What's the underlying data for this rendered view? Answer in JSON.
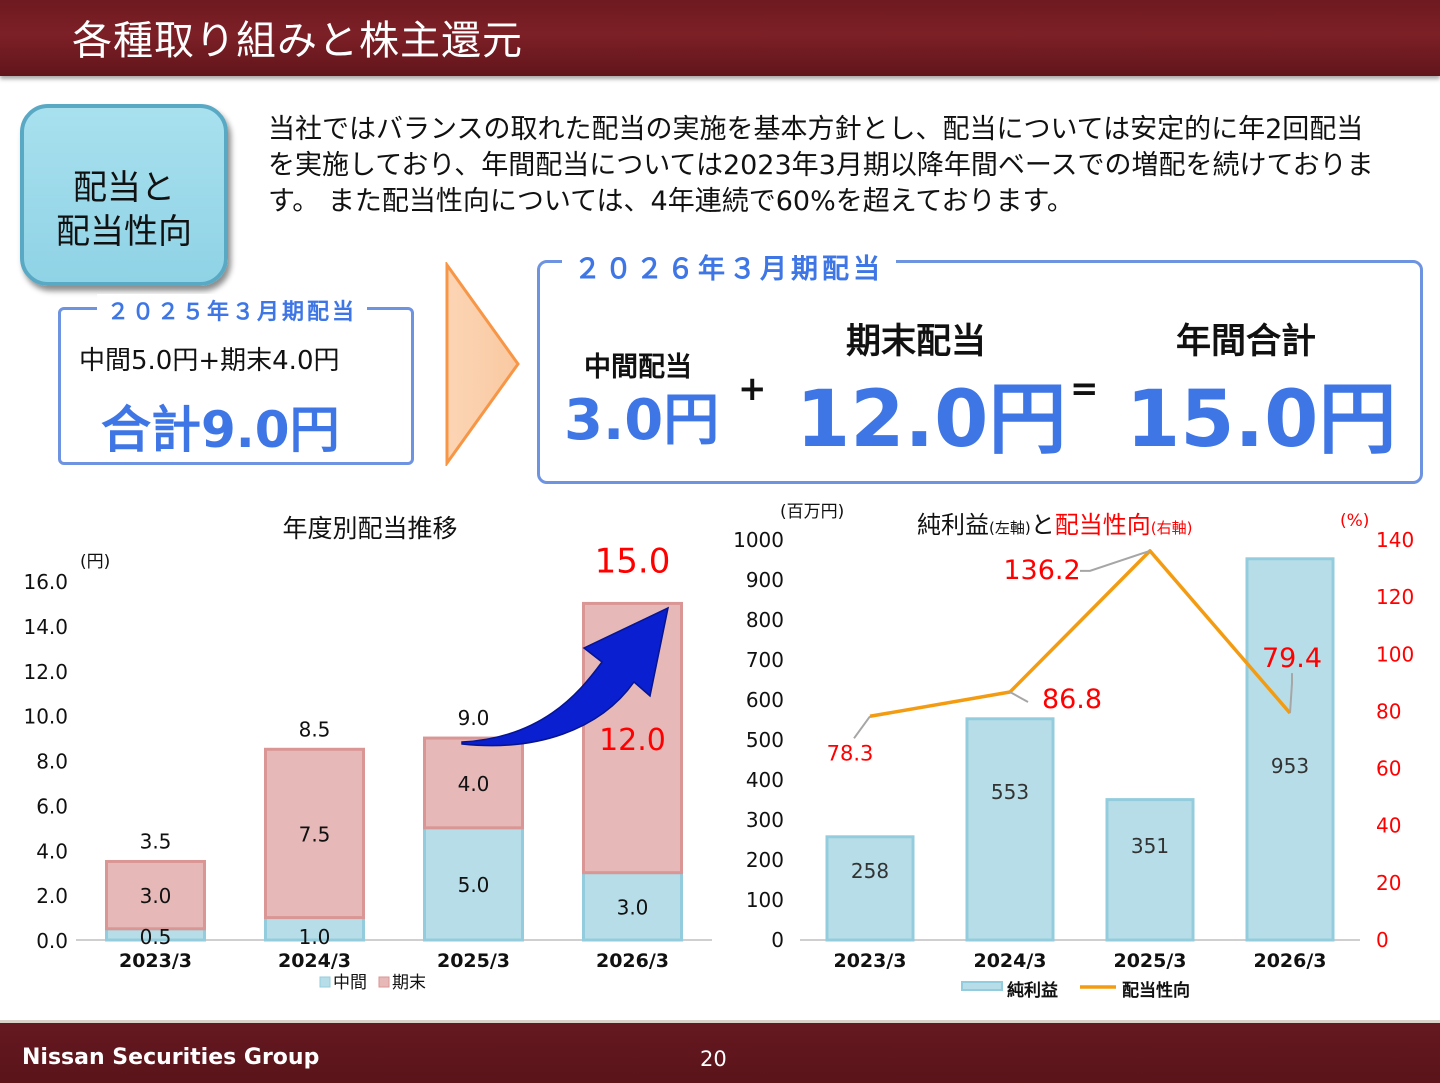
{
  "header": {
    "title": "各種取り組みと株主還元"
  },
  "footer": {
    "company": "Nissan Securities Group",
    "page": "20"
  },
  "badge": {
    "line1": "配当と",
    "line2": "配当性向"
  },
  "intro": {
    "text": "当社ではバランスの取れた配当の実施を基本方針とし、配当については安定的に年2回配当を実施しており、年間配当については2023年3月期以降年間ベースでの増配を続けております。 また配当性向については、4年連続で60%を超えております。"
  },
  "dividend_2025": {
    "legend": "２０２５年３月期配当",
    "detail": "中間5.0円+期末4.0円",
    "total": "合計9.0円"
  },
  "dividend_2026": {
    "legend": "２０２６年３月期配当",
    "interim_label": "中間配当",
    "interim_value": "3.0円",
    "plus": "+",
    "final_label": "期末配当",
    "final_value": "12.0円",
    "equals": "=",
    "total_label": "年間合計",
    "total_value": "15.0円"
  },
  "colors": {
    "interim": "#b7dee8",
    "interim_border": "#93cddd",
    "final": "#e6b9b8",
    "final_border": "#d99694",
    "ratio_line": "#f39c12",
    "red_label": "#ff0000",
    "accent_blue": "#3f76e6",
    "arrow": "#0a1fd0"
  },
  "chart_data": [
    {
      "type": "bar",
      "stacked": true,
      "title": "年度別配当推移",
      "ylabel": "(円)",
      "ylim": [
        0,
        16
      ],
      "yticks": [
        "16.0",
        "14.0",
        "12.0",
        "10.0",
        "8.0",
        "6.0",
        "4.0",
        "2.0",
        "0.0"
      ],
      "categories": [
        "2023/3",
        "2024/3",
        "2025/3",
        "2026/3"
      ],
      "series": [
        {
          "name": "中間",
          "values": [
            0.5,
            1.0,
            5.0,
            3.0
          ],
          "labels": [
            "0.5",
            "1.0",
            "5.0",
            "3.0"
          ]
        },
        {
          "name": "期末",
          "values": [
            3.0,
            7.5,
            4.0,
            12.0
          ],
          "labels": [
            "3.0",
            "7.5",
            "4.0",
            "12.0"
          ]
        }
      ],
      "totals": [
        "3.5",
        "8.5",
        "9.0",
        "15.0"
      ],
      "legend": "bottom"
    },
    {
      "type": "bar",
      "combo": "bar+line",
      "title": "純利益",
      "title_left_note": "(左軸)",
      "title_joiner": "と",
      "title_red": "配当性向",
      "title_right_note": "(右軸)",
      "ylabel_left": "(百万円)",
      "ylabel_right": "(%)",
      "ylim_left": [
        0,
        1000
      ],
      "ylim_right": [
        0,
        140
      ],
      "yticks_left": [
        "1000",
        "900",
        "800",
        "700",
        "600",
        "500",
        "400",
        "300",
        "200",
        "100",
        "0"
      ],
      "yticks_right": [
        "140",
        "120",
        "100",
        "80",
        "60",
        "40",
        "20",
        "0"
      ],
      "categories": [
        "2023/3",
        "2024/3",
        "2025/3",
        "2026/3"
      ],
      "series": [
        {
          "name": "純利益",
          "kind": "bar",
          "axis": "left",
          "values": [
            258,
            553,
            351,
            953
          ],
          "labels": [
            "258",
            "553",
            "351",
            "953"
          ]
        },
        {
          "name": "配当性向",
          "kind": "line",
          "axis": "right",
          "values": [
            78.3,
            86.8,
            136.2,
            79.4
          ],
          "labels": [
            "78.3",
            "86.8",
            "136.2",
            "79.4"
          ]
        }
      ],
      "legend": "bottom"
    }
  ]
}
